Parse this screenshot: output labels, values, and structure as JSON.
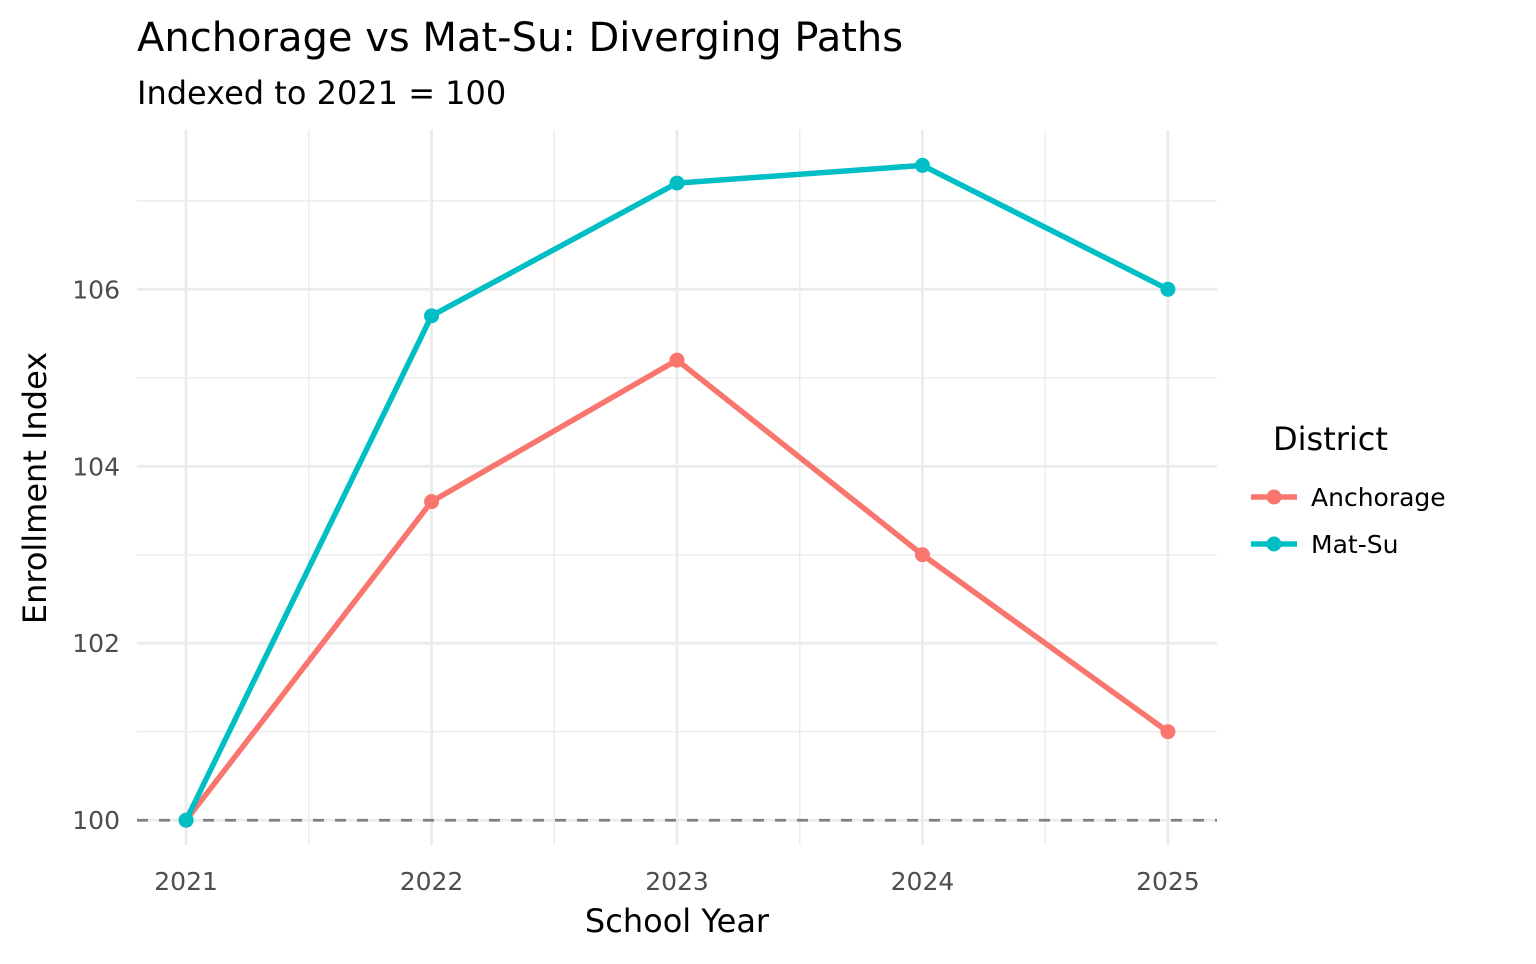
{
  "chart_data": {
    "type": "line",
    "title": "Anchorage vs Mat-Su: Diverging Paths",
    "subtitle": "Indexed to 2021 = 100",
    "xlabel": "School Year",
    "ylabel": "Enrollment Index",
    "x": [
      2021,
      2022,
      2023,
      2024,
      2025
    ],
    "x_tick_labels": [
      "2021",
      "2022",
      "2023",
      "2024",
      "2025"
    ],
    "y_ticks": [
      100,
      102,
      104,
      106
    ],
    "y_tick_labels": [
      "100",
      "102",
      "104",
      "106"
    ],
    "xlim": [
      2020.8,
      2025.2
    ],
    "ylim": [
      99.72,
      107.8
    ],
    "grid": true,
    "reference_line": {
      "y": 100,
      "style": "dashed",
      "color": "#808080"
    },
    "legend": {
      "title": "District",
      "placement": "right"
    },
    "series": [
      {
        "name": "Anchorage",
        "color": "#F8766D",
        "values": [
          100,
          103.6,
          105.2,
          103.0,
          101.0
        ]
      },
      {
        "name": "Mat-Su",
        "color": "#00BFC4",
        "values": [
          100,
          105.7,
          107.2,
          107.4,
          106.0
        ]
      }
    ]
  }
}
